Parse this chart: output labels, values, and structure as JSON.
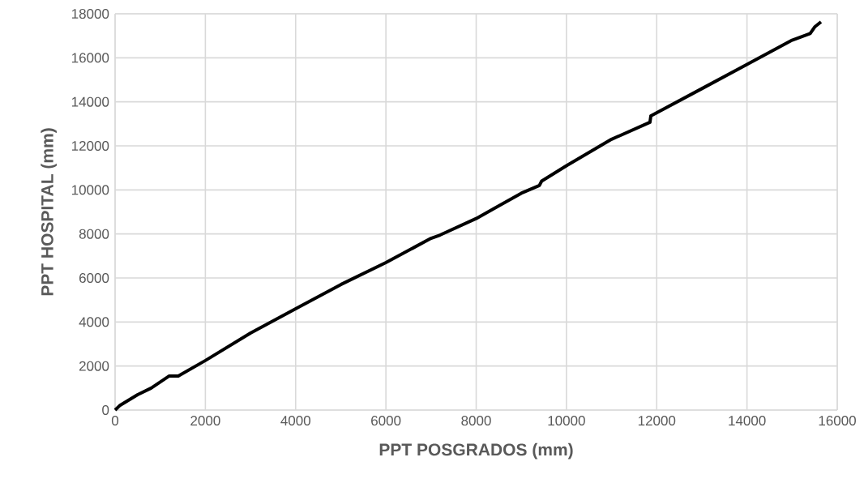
{
  "chart_data": {
    "type": "line",
    "xlabel": "PPT POSGRADOS (mm)",
    "ylabel": "PPT  HOSPITAL (mm)",
    "x": [
      0,
      100,
      500,
      800,
      1200,
      1400,
      2000,
      3000,
      4000,
      5000,
      6000,
      7000,
      7200,
      8000,
      9000,
      9400,
      9450,
      10000,
      11000,
      11850,
      11870,
      13000,
      14000,
      15000,
      15400,
      15500,
      15640
    ],
    "series": [
      {
        "color": "#000000",
        "values": [
          0,
          200,
          700,
          1000,
          1550,
          1550,
          2250,
          3500,
          4600,
          5700,
          6700,
          7800,
          7950,
          8700,
          9850,
          10200,
          10400,
          11100,
          12300,
          13070,
          13360,
          14600,
          15700,
          16800,
          17100,
          17400,
          17630
        ]
      }
    ],
    "xlim": [
      0,
      16000
    ],
    "ylim": [
      0,
      18000
    ],
    "xticks": [
      0,
      2000,
      4000,
      6000,
      8000,
      10000,
      12000,
      14000,
      16000
    ],
    "yticks": [
      0,
      2000,
      4000,
      6000,
      8000,
      10000,
      12000,
      14000,
      16000,
      18000
    ],
    "grid": true,
    "legend": false,
    "marker": "none",
    "line_style": "solid"
  }
}
